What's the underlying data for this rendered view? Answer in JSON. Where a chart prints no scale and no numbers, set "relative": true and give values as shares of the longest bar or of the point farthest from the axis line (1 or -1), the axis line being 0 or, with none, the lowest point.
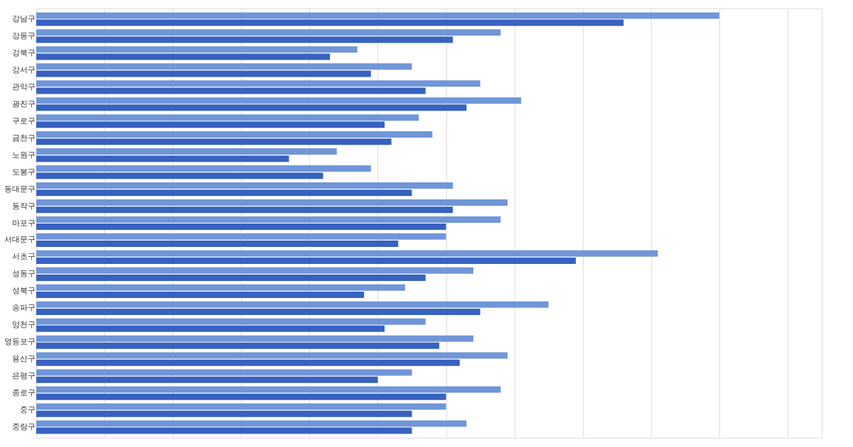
{
  "chart_data": {
    "type": "bar",
    "orientation": "horizontal",
    "relative": true,
    "grid": "x",
    "legend": false,
    "categories": [
      "강남구",
      "강동구",
      "강북구",
      "강서구",
      "관악구",
      "광진구",
      "구로구",
      "금천구",
      "노원구",
      "도봉구",
      "동대문구",
      "동작구",
      "마포구",
      "서대문구",
      "서초구",
      "성동구",
      "성북구",
      "송파구",
      "양천구",
      "영등포구",
      "용산구",
      "은평구",
      "종로구",
      "중구",
      "중랑구"
    ],
    "series": [
      {
        "color": "#7096d8",
        "values": [
          1.0,
          0.68,
          0.47,
          0.55,
          0.65,
          0.71,
          0.56,
          0.58,
          0.44,
          0.49,
          0.61,
          0.69,
          0.68,
          0.6,
          0.91,
          0.64,
          0.54,
          0.75,
          0.57,
          0.64,
          0.69,
          0.55,
          0.68,
          0.6,
          0.63
        ]
      },
      {
        "color": "#3862c0",
        "values": [
          0.86,
          0.61,
          0.43,
          0.49,
          0.57,
          0.63,
          0.51,
          0.52,
          0.37,
          0.42,
          0.55,
          0.61,
          0.6,
          0.53,
          0.79,
          0.57,
          0.48,
          0.65,
          0.51,
          0.59,
          0.62,
          0.5,
          0.6,
          0.55,
          0.55
        ]
      }
    ]
  }
}
